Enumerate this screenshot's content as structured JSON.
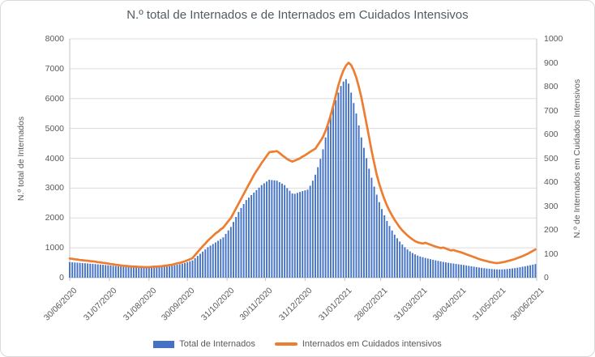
{
  "chart_data": {
    "type": "bar+line combo, dual axis",
    "title": "N.º total de Internados e de Internados em Cuidados Intensivos",
    "ylabel_left": "N.º total de Internados",
    "ylabel_right": "N.º de Internados em Cuidados Intensivos",
    "ylim_left": [
      0,
      8000
    ],
    "ytick_step_left": 1000,
    "ylim_right": [
      0,
      1000
    ],
    "ytick_step_right": 100,
    "grid": true,
    "legend_position": "bottom",
    "x_start": "30/06/2020",
    "x_end": "30/06/2021",
    "x_step_days": 2,
    "x_span_days": 365,
    "x_tick_labels": [
      "30/06/2020",
      "31/07/2020",
      "31/08/2020",
      "30/09/2020",
      "31/10/2020",
      "30/11/2020",
      "31/12/2020",
      "31/01/2021",
      "28/02/2021",
      "31/03/2021",
      "30/04/2021",
      "31/05/2021",
      "30/06/2021"
    ],
    "x_tick_days": [
      0,
      31,
      62,
      92,
      123,
      153,
      184,
      215,
      243,
      274,
      304,
      335,
      365
    ],
    "legend": [
      {
        "label": "Total de Internados",
        "type": "bar",
        "color": "#4472C4"
      },
      {
        "label": "Internados em Cuidados intensivos",
        "type": "line",
        "color": "#ED7D31"
      }
    ],
    "series": [
      {
        "name": "Total de Internados",
        "axis": "left",
        "type": "bar",
        "color": "#4472C4",
        "values": [
          520,
          514,
          508,
          502,
          496,
          490,
          483,
          476,
          469,
          462,
          455,
          447,
          439,
          431,
          423,
          415,
          406,
          397,
          388,
          379,
          370,
          365,
          360,
          355,
          350,
          345,
          343,
          341,
          339,
          337,
          335,
          338,
          341,
          344,
          347,
          350,
          359,
          368,
          377,
          386,
          395,
          414,
          433,
          452,
          471,
          490,
          520,
          550,
          580,
          653,
          727,
          800,
          873,
          947,
          1020,
          1073,
          1127,
          1180,
          1237,
          1293,
          1350,
          1467,
          1583,
          1700,
          1867,
          2033,
          2200,
          2333,
          2467,
          2600,
          2683,
          2767,
          2850,
          2933,
          3017,
          3100,
          3160,
          3220,
          3280,
          3270,
          3260,
          3250,
          3200,
          3150,
          3100,
          3000,
          2910,
          2820,
          2810,
          2840,
          2870,
          2900,
          2925,
          2950,
          3080,
          3250,
          3450,
          3700,
          3980,
          4300,
          4700,
          5080,
          5400,
          5700,
          5950,
          6200,
          6420,
          6570,
          6650,
          6500,
          6200,
          5850,
          5500,
          5100,
          4700,
          4350,
          4000,
          3650,
          3350,
          3050,
          2780,
          2530,
          2300,
          2090,
          1900,
          1730,
          1580,
          1440,
          1320,
          1210,
          1110,
          1020,
          945,
          880,
          825,
          780,
          740,
          710,
          685,
          660,
          640,
          620,
          600,
          580,
          562,
          545,
          528,
          512,
          498,
          485,
          472,
          460,
          448,
          437,
          425,
          410,
          396,
          382,
          368,
          354,
          341,
          329,
          317,
          306,
          297,
          289,
          283,
          278,
          276,
          278,
          283,
          290,
          299,
          310,
          322,
          336,
          350,
          366,
          382,
          399,
          417,
          436,
          456
        ]
      },
      {
        "name": "Internados em Cuidados intensivos",
        "axis": "right",
        "type": "line",
        "color": "#ED7D31",
        "values": [
          80,
          79,
          77,
          76,
          74,
          73,
          72,
          71,
          69,
          68,
          67,
          65,
          64,
          62,
          61,
          59,
          57,
          56,
          54,
          53,
          51,
          50,
          49,
          48,
          47,
          46,
          46,
          45,
          45,
          44,
          44,
          44,
          45,
          46,
          46,
          47,
          48,
          50,
          51,
          53,
          54,
          57,
          60,
          62,
          65,
          68,
          73,
          77,
          82,
          95,
          107,
          120,
          132,
          143,
          155,
          165,
          175,
          185,
          193,
          202,
          210,
          223,
          237,
          250,
          270,
          290,
          310,
          330,
          350,
          370,
          390,
          410,
          430,
          447,
          463,
          480,
          495,
          510,
          525,
          527,
          528,
          530,
          522,
          513,
          505,
          497,
          491,
          486,
          490,
          495,
          500,
          507,
          513,
          520,
          527,
          534,
          540,
          556,
          572,
          590,
          615,
          645,
          680,
          720,
          762,
          805,
          840,
          868,
          888,
          900,
          890,
          868,
          838,
          800,
          755,
          700,
          645,
          588,
          532,
          480,
          432,
          392,
          358,
          328,
          302,
          280,
          260,
          242,
          226,
          211,
          198,
          187,
          177,
          168,
          160,
          153,
          148,
          145,
          143,
          146,
          142,
          138,
          134,
          130,
          127,
          124,
          126,
          122,
          118,
          114,
          116,
          112,
          109,
          106,
          102,
          98,
          94,
          90,
          86,
          82,
          78,
          75,
          72,
          69,
          66,
          64,
          62,
          61,
          62,
          64,
          66,
          69,
          72,
          75,
          78,
          82,
          86,
          90,
          95,
          100,
          106,
          112,
          118
        ]
      }
    ],
    "colors": {
      "bar": "#4472C4",
      "line": "#ED7D31",
      "gridline": "#dcdcdc",
      "axis_line": "#c3c3c3",
      "text": "#595959",
      "title": "#525a63"
    }
  }
}
